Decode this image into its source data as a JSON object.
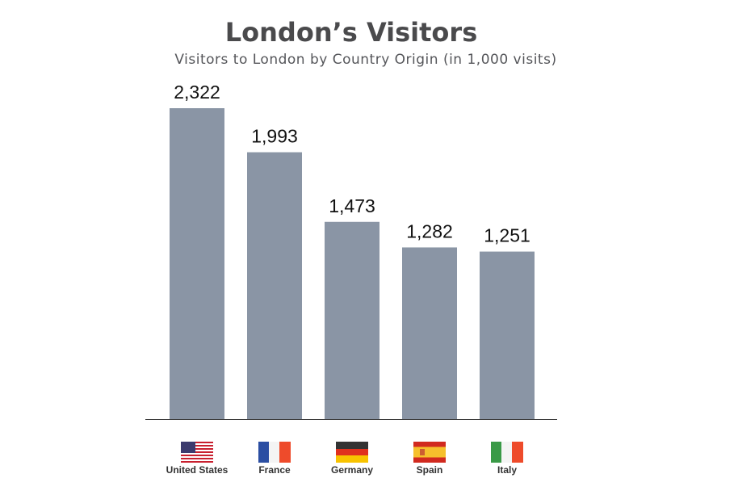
{
  "chart_data": {
    "type": "bar",
    "title": "London’s Visitors",
    "subtitle": "Visitors to London by Country Origin (in 1,000 visits)",
    "categories": [
      "United States",
      "France",
      "Germany",
      "Spain",
      "Italy"
    ],
    "values": [
      2322,
      1993,
      1473,
      1282,
      1251
    ],
    "value_labels": [
      "2,322",
      "1,993",
      "1,473",
      "1,282",
      "1,251"
    ],
    "color": "#8a95a5"
  }
}
